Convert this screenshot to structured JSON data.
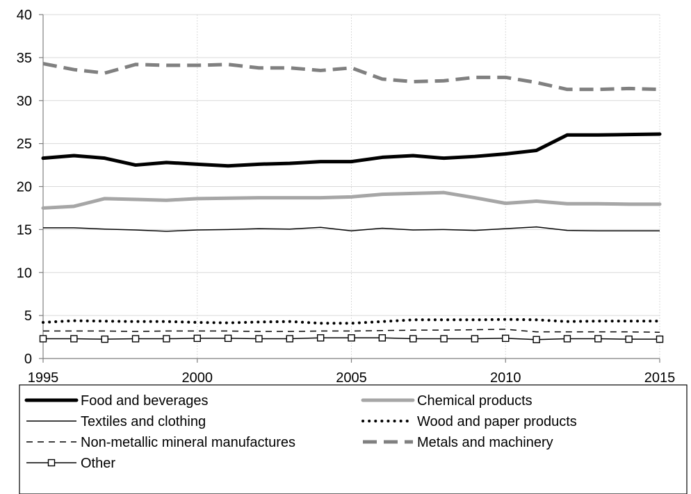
{
  "chart_data": {
    "type": "line",
    "title": "",
    "xlabel": "",
    "ylabel": "",
    "x": [
      1995,
      1996,
      1997,
      1998,
      1999,
      2000,
      2001,
      2002,
      2003,
      2004,
      2005,
      2006,
      2007,
      2008,
      2009,
      2010,
      2011,
      2012,
      2013,
      2014,
      2015
    ],
    "xlim": [
      1995,
      2015
    ],
    "ylim": [
      0,
      40
    ],
    "x_ticks": [
      "1995",
      "2000",
      "2005",
      "2010",
      "2015"
    ],
    "y_ticks": [
      "0",
      "5",
      "10",
      "15",
      "20",
      "25",
      "30",
      "35",
      "40"
    ],
    "grid": true,
    "legend_position": "bottom",
    "series": [
      {
        "name": "Food and beverages",
        "style": "thick-solid",
        "color": "#000000",
        "values": [
          23.3,
          23.6,
          23.3,
          22.5,
          22.8,
          22.6,
          22.4,
          22.6,
          22.7,
          22.9,
          22.9,
          23.4,
          23.6,
          23.3,
          23.5,
          23.8,
          24.2,
          26.0,
          26.0,
          26.05,
          26.1
        ]
      },
      {
        "name": "Chemical products",
        "style": "thick-solid",
        "color": "#a6a6a6",
        "values": [
          17.5,
          17.7,
          18.6,
          18.5,
          18.4,
          18.6,
          18.65,
          18.7,
          18.7,
          18.7,
          18.8,
          19.1,
          19.2,
          19.3,
          18.7,
          18.05,
          18.3,
          18.0,
          18.0,
          17.95,
          17.95
        ]
      },
      {
        "name": "Textiles and clothing",
        "style": "thin-solid",
        "color": "#000000",
        "values": [
          15.2,
          15.2,
          15.05,
          14.95,
          14.8,
          14.95,
          15.0,
          15.1,
          15.05,
          15.25,
          14.85,
          15.15,
          14.95,
          15.0,
          14.9,
          15.1,
          15.3,
          14.9,
          14.85,
          14.85,
          14.85
        ]
      },
      {
        "name": "Wood and paper products",
        "style": "dotted",
        "color": "#000000",
        "values": [
          4.2,
          4.4,
          4.35,
          4.3,
          4.3,
          4.2,
          4.15,
          4.25,
          4.3,
          4.1,
          4.1,
          4.3,
          4.5,
          4.5,
          4.5,
          4.55,
          4.5,
          4.3,
          4.35,
          4.35,
          4.35
        ]
      },
      {
        "name": "Non-metallic mineral manufactures",
        "style": "dashed",
        "color": "#000000",
        "values": [
          3.2,
          3.2,
          3.2,
          3.15,
          3.2,
          3.2,
          3.2,
          3.15,
          3.15,
          3.2,
          3.2,
          3.25,
          3.3,
          3.3,
          3.35,
          3.4,
          3.1,
          3.1,
          3.1,
          3.1,
          3.05
        ]
      },
      {
        "name": "Metals and machinery",
        "style": "thick-dashed",
        "color": "#808080",
        "values": [
          34.3,
          33.6,
          33.2,
          34.2,
          34.1,
          34.1,
          34.2,
          33.8,
          33.8,
          33.5,
          33.8,
          32.5,
          32.2,
          32.3,
          32.7,
          32.7,
          32.1,
          31.3,
          31.3,
          31.4,
          31.3
        ]
      },
      {
        "name": "Other",
        "style": "solid-square-markers",
        "color": "#000000",
        "values": [
          2.3,
          2.3,
          2.25,
          2.3,
          2.3,
          2.35,
          2.35,
          2.3,
          2.3,
          2.4,
          2.4,
          2.4,
          2.3,
          2.3,
          2.3,
          2.35,
          2.2,
          2.3,
          2.3,
          2.25,
          2.25
        ]
      }
    ]
  }
}
